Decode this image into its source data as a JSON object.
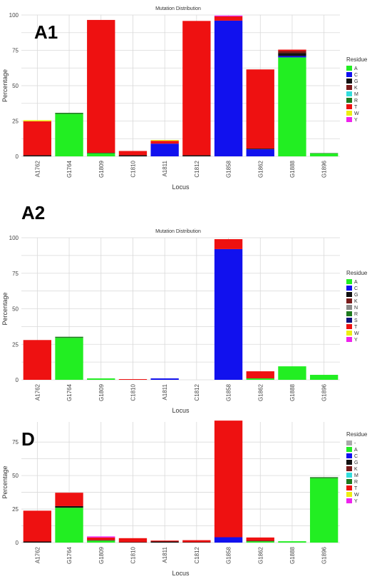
{
  "colors": {
    "-": "#aaaaaa",
    "A": "#22ee22",
    "C": "#1111ee",
    "G": "#111111",
    "K": "#7a1c1c",
    "M": "#33dddd",
    "N": "#8a8a8a",
    "R": "#1e7a1e",
    "S": "#12127a",
    "T": "#ee1111",
    "W": "#eeee11",
    "Y": "#ee22ee"
  },
  "chart_data": [
    {
      "type": "bar",
      "stacked": true,
      "panel_label": "A1",
      "title": "Mutation Distribution",
      "xlabel": "Locus",
      "ylabel": "Percentage",
      "ylim": [
        0,
        100
      ],
      "yticks": [
        0,
        25,
        50,
        75,
        100
      ],
      "grid": true,
      "legend_position": "right",
      "legend_title": "Residue",
      "legend": [
        "A",
        "C",
        "G",
        "K",
        "M",
        "R",
        "T",
        "W",
        "Y"
      ],
      "categories": [
        "A1762",
        "G1764",
        "G1809",
        "C1810",
        "A1811",
        "C1812",
        "G1858",
        "G1862",
        "G1888",
        "G1896"
      ],
      "series": [
        {
          "name": "A",
          "values": [
            0,
            30,
            2,
            0,
            0,
            0,
            0,
            0,
            70,
            2
          ]
        },
        {
          "name": "C",
          "values": [
            0,
            0,
            0,
            0,
            9,
            0,
            96,
            5,
            1,
            0
          ]
        },
        {
          "name": "G",
          "values": [
            0.8,
            0,
            0,
            0.8,
            0,
            0.8,
            0,
            0.5,
            2,
            0
          ]
        },
        {
          "name": "K",
          "values": [
            0,
            0,
            0,
            0,
            0,
            0,
            0,
            0,
            1.5,
            0
          ]
        },
        {
          "name": "M",
          "values": [
            0,
            0,
            0,
            0,
            0,
            0,
            0,
            0,
            0,
            0
          ]
        },
        {
          "name": "R",
          "values": [
            0,
            0.8,
            0.5,
            0,
            0,
            0,
            0,
            0,
            0,
            0.3
          ]
        },
        {
          "name": "T",
          "values": [
            24,
            0,
            94,
            3,
            2,
            95,
            3,
            56,
            1,
            0
          ]
        },
        {
          "name": "W",
          "values": [
            0.8,
            0,
            0,
            0,
            0.6,
            0,
            0,
            0,
            0,
            0
          ]
        },
        {
          "name": "Y",
          "values": [
            0,
            0,
            0,
            0,
            0,
            0,
            0.6,
            0,
            0,
            0
          ]
        }
      ]
    },
    {
      "type": "bar",
      "stacked": true,
      "panel_label": "A2",
      "title": "Mutation Distribution",
      "xlabel": "Locus",
      "ylabel": "Percentage",
      "ylim": [
        0,
        100
      ],
      "yticks": [
        0,
        25,
        50,
        75,
        100
      ],
      "grid": true,
      "legend_position": "right",
      "legend_title": "Residue",
      "legend": [
        "A",
        "C",
        "G",
        "K",
        "N",
        "R",
        "S",
        "T",
        "W",
        "Y"
      ],
      "categories": [
        "A1762",
        "G1764",
        "G1809",
        "C1810",
        "A1811",
        "C1812",
        "G1858",
        "G1862",
        "G1888",
        "G1896"
      ],
      "series": [
        {
          "name": "A",
          "values": [
            0,
            29.5,
            1,
            0,
            0,
            0,
            0,
            1,
            9.5,
            3.5
          ]
        },
        {
          "name": "C",
          "values": [
            0,
            0,
            0,
            0,
            1,
            0,
            92,
            0,
            0,
            0
          ]
        },
        {
          "name": "G",
          "values": [
            0,
            0,
            0,
            0,
            0,
            0,
            0,
            0,
            0,
            0
          ]
        },
        {
          "name": "K",
          "values": [
            0,
            0,
            0,
            0,
            0,
            0,
            0,
            0,
            0,
            0
          ]
        },
        {
          "name": "N",
          "values": [
            0,
            0,
            0,
            0,
            0,
            0,
            0,
            0,
            0,
            0
          ]
        },
        {
          "name": "R",
          "values": [
            0,
            0.8,
            0,
            0,
            0,
            0,
            0,
            0,
            0,
            0
          ]
        },
        {
          "name": "S",
          "values": [
            0,
            0,
            0,
            0,
            0,
            0,
            0,
            0,
            0,
            0
          ]
        },
        {
          "name": "T",
          "values": [
            28,
            0,
            0,
            0.5,
            0,
            0,
            7,
            5,
            0,
            0
          ]
        },
        {
          "name": "W",
          "values": [
            0,
            0,
            0,
            0,
            0,
            0,
            0,
            0,
            0,
            0
          ]
        },
        {
          "name": "Y",
          "values": [
            0,
            0,
            0,
            0,
            0,
            0,
            0,
            0,
            0,
            0
          ]
        }
      ]
    },
    {
      "type": "bar",
      "stacked": true,
      "panel_label": "D",
      "title": "",
      "xlabel": "Locus",
      "ylabel": "Percentage",
      "ylim": [
        0,
        90
      ],
      "yticks": [
        0,
        25,
        50,
        75
      ],
      "grid": true,
      "legend_position": "right",
      "legend_title": "Residue",
      "legend": [
        "-",
        "A",
        "C",
        "G",
        "K",
        "M",
        "R",
        "T",
        "W",
        "Y"
      ],
      "categories": [
        "A1762",
        "G1764",
        "G1809",
        "C1810",
        "A1811",
        "C1812",
        "G1858",
        "G1862",
        "G1888",
        "G1896"
      ],
      "series": [
        {
          "name": "-",
          "values": [
            0,
            0,
            0,
            0,
            0,
            0,
            0,
            0,
            0,
            0
          ]
        },
        {
          "name": "A",
          "values": [
            0,
            26,
            1.5,
            0,
            0,
            0,
            0,
            1,
            1,
            48
          ]
        },
        {
          "name": "C",
          "values": [
            0,
            0,
            0,
            0,
            0,
            0,
            4,
            0,
            0,
            0
          ]
        },
        {
          "name": "G",
          "values": [
            0.8,
            1.2,
            0.3,
            0.3,
            0.8,
            0.3,
            0,
            0.3,
            0,
            0
          ]
        },
        {
          "name": "K",
          "values": [
            0,
            0,
            0,
            0,
            0,
            0,
            0,
            0,
            0,
            0
          ]
        },
        {
          "name": "M",
          "values": [
            0,
            0,
            0,
            0,
            0,
            0,
            0,
            0,
            0,
            0
          ]
        },
        {
          "name": "R",
          "values": [
            0,
            0,
            0,
            0,
            0,
            0,
            0,
            0,
            0,
            0.8
          ]
        },
        {
          "name": "T",
          "values": [
            23,
            10,
            2,
            3,
            0.7,
            1.5,
            87,
            2.5,
            0,
            0
          ]
        },
        {
          "name": "W",
          "values": [
            0,
            0,
            0,
            0,
            0,
            0,
            0,
            0,
            0,
            0
          ]
        },
        {
          "name": "Y",
          "values": [
            0,
            0,
            0.8,
            0,
            0,
            0,
            0,
            0,
            0,
            0
          ]
        }
      ]
    }
  ]
}
